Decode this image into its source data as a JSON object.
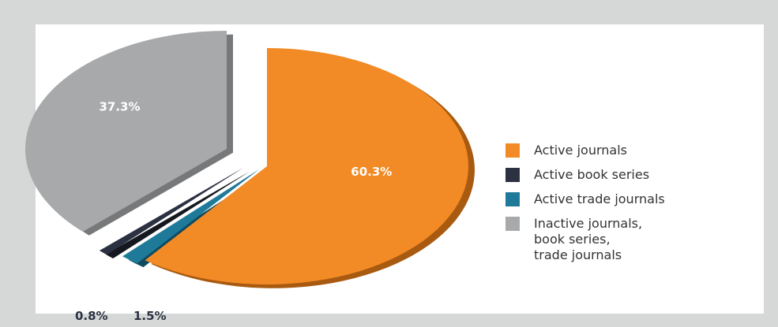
{
  "chart_data": {
    "type": "pie",
    "title": "",
    "legend_position": "right",
    "slices": [
      {
        "key": "active_journals",
        "label": "Active journals",
        "value": 60.3,
        "value_label": "60.3%",
        "color": "#f28a25",
        "shade": "#a85a10",
        "label_color": "#ffffff"
      },
      {
        "key": "active_trade_journals",
        "label": "Active trade journals",
        "value": 1.5,
        "value_label": "1.5%",
        "color": "#1f7a9a",
        "shade": "#0e4a60",
        "label_color": "#2b3140"
      },
      {
        "key": "active_book_series",
        "label": "Active book series",
        "value": 0.8,
        "value_label": "0.8%",
        "color": "#2c3142",
        "shade": "#15181f",
        "label_color": "#2b3140"
      },
      {
        "key": "inactive",
        "label": "Inactive journals,\nbook series,\ntrade journals",
        "value": 37.3,
        "value_label": "37.3%",
        "color": "#a7a9ab",
        "shade": "#76787a",
        "label_color": "#ffffff"
      }
    ],
    "legend_order": [
      "active_journals",
      "active_book_series",
      "active_trade_journals",
      "inactive"
    ]
  }
}
